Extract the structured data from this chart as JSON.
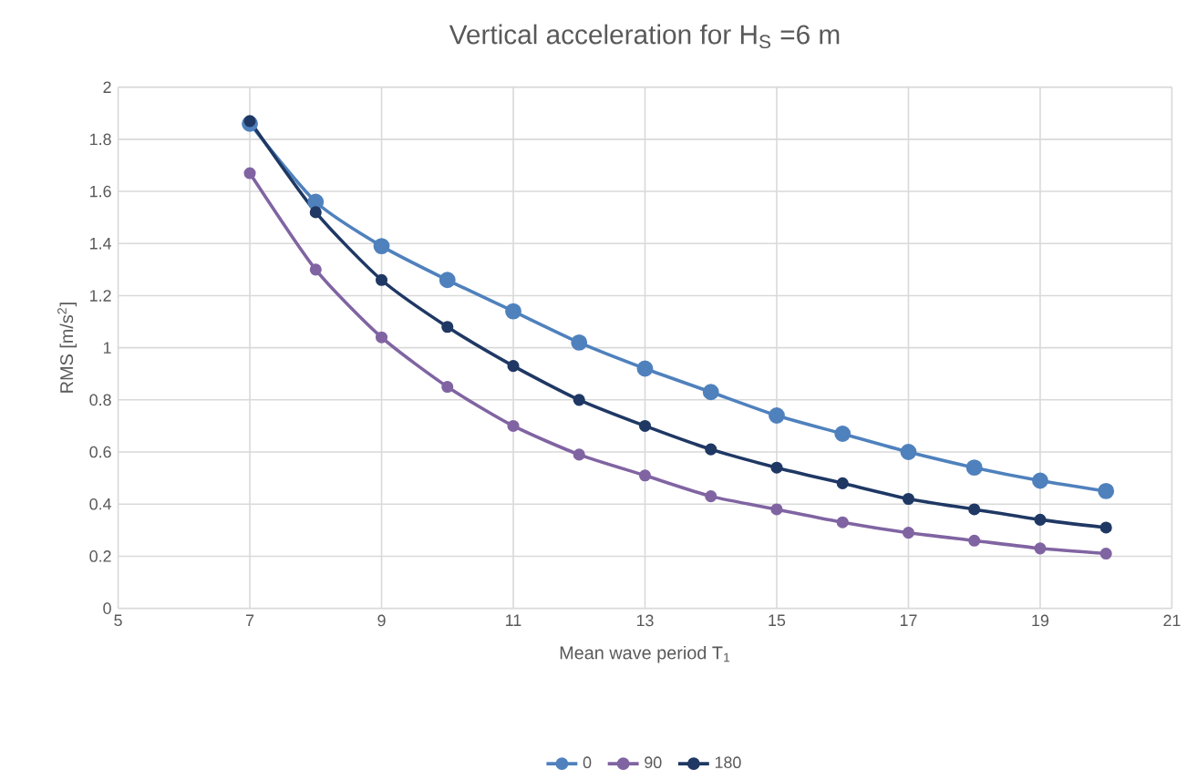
{
  "chart_data": {
    "type": "line",
    "title": "Vertical acceleration for H$_{S}$ =6 m",
    "xlabel": "Mean wave period T$_{1}$",
    "ylabel": "RMS [m/s$^{2}$]",
    "x": [
      7,
      8,
      9,
      10,
      11,
      12,
      13,
      14,
      15,
      16,
      17,
      18,
      19,
      20
    ],
    "series": [
      {
        "name": "0",
        "color": "#4f81bd",
        "values": [
          1.86,
          1.56,
          1.39,
          1.26,
          1.14,
          1.02,
          0.92,
          0.83,
          0.74,
          0.67,
          0.6,
          0.54,
          0.49,
          0.45
        ]
      },
      {
        "name": "90",
        "color": "#8064a2",
        "values": [
          1.67,
          1.3,
          1.04,
          0.85,
          0.7,
          0.59,
          0.51,
          0.43,
          0.38,
          0.33,
          0.29,
          0.26,
          0.23,
          0.21
        ]
      },
      {
        "name": "180",
        "color": "#1f3864",
        "values": [
          1.87,
          1.52,
          1.26,
          1.08,
          0.93,
          0.8,
          0.7,
          0.61,
          0.54,
          0.48,
          0.42,
          0.38,
          0.34,
          0.31
        ]
      }
    ],
    "xlim": [
      5,
      21
    ],
    "ylim": [
      0,
      2
    ],
    "xticks": [
      5,
      7,
      9,
      11,
      13,
      15,
      17,
      19,
      21
    ],
    "yticks": [
      0,
      0.2,
      0.4,
      0.6,
      0.8,
      1,
      1.2,
      1.4,
      1.6,
      1.8,
      2
    ],
    "grid": true,
    "legend": "bottom",
    "marker": "circle",
    "line_style": "solid"
  }
}
